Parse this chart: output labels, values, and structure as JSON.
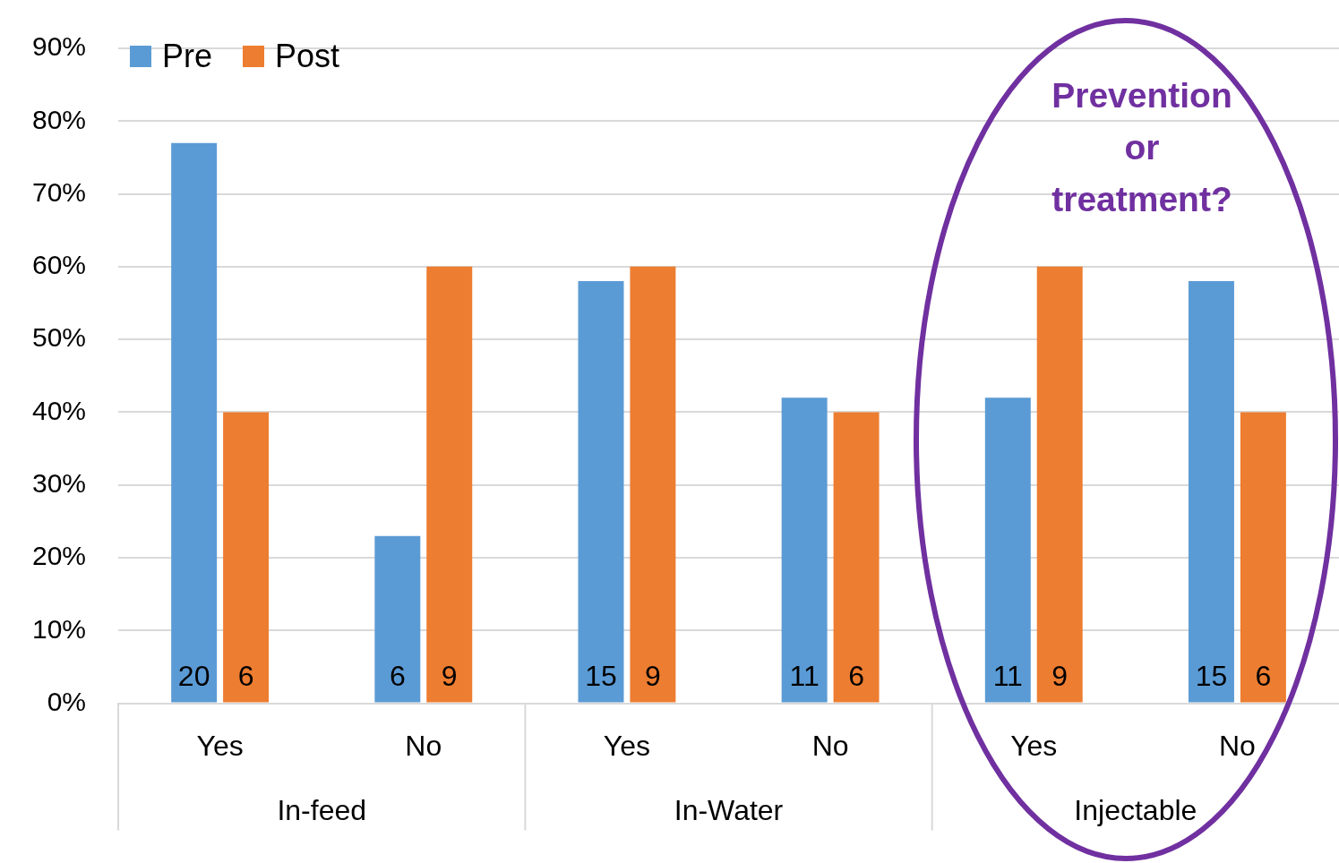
{
  "chart_data": {
    "type": "bar",
    "categories": [
      "Yes",
      "No",
      "Yes",
      "No",
      "Yes",
      "No"
    ],
    "series": [
      {
        "name": "Pre",
        "color": "#5b9bd5",
        "values": [
          77,
          23,
          58,
          42,
          42,
          58
        ]
      },
      {
        "name": "Post",
        "color": "#ed7d31",
        "values": [
          40,
          60,
          60,
          40,
          60,
          40
        ]
      }
    ],
    "ylim": [
      0,
      90
    ],
    "yticks": [
      {
        "value": 0,
        "label": "0%"
      },
      {
        "value": 10,
        "label": "10%"
      },
      {
        "value": 20,
        "label": "20%"
      },
      {
        "value": 30,
        "label": "30%"
      },
      {
        "value": 40,
        "label": "40%"
      },
      {
        "value": 50,
        "label": "50%"
      },
      {
        "value": 60,
        "label": "60%"
      },
      {
        "value": 70,
        "label": "70%"
      },
      {
        "value": 80,
        "label": "80%"
      },
      {
        "value": 90,
        "label": "90%"
      }
    ],
    "grid": "y",
    "legend": "top left",
    "annotations": [
      "Prevention or treatment?",
      "In-feed",
      "In-Water",
      "Injectable",
      "20",
      "6",
      "6",
      "9",
      "15",
      "9",
      "11",
      "6",
      "11",
      "9",
      "15",
      "6"
    ]
  }
}
